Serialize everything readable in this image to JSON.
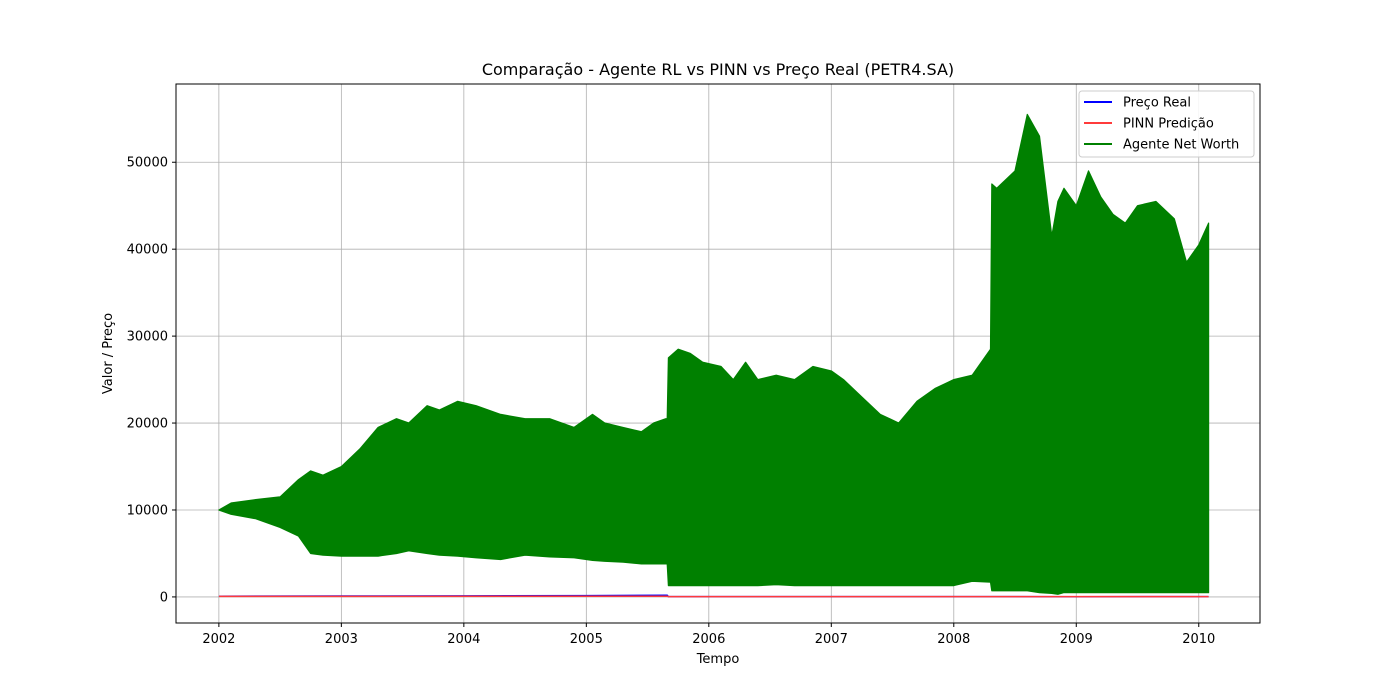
{
  "chart_data": {
    "type": "line",
    "title": "Comparação - Agente RL vs PINN vs Preço Real (PETR4.SA)",
    "xlabel": "Tempo",
    "ylabel": "Valor / Preço",
    "xlim": [
      2001.65,
      2010.5
    ],
    "ylim": [
      -3000,
      59000
    ],
    "x_ticks": [
      2002,
      2003,
      2004,
      2005,
      2006,
      2007,
      2008,
      2009,
      2010
    ],
    "y_ticks": [
      0,
      10000,
      20000,
      30000,
      40000,
      50000
    ],
    "grid": true,
    "legend_position": "top-right",
    "series": [
      {
        "name": "Preço Real",
        "color": "#0000ff",
        "style": "line",
        "x": [
          2002.0,
          2003.0,
          2004.0,
          2005.0,
          2005.66,
          2005.67,
          2007.0,
          2008.0,
          2009.0,
          2010.08
        ],
        "y": [
          80,
          100,
          120,
          150,
          200,
          40,
          40,
          40,
          30,
          40
        ]
      },
      {
        "name": "PINN Predição",
        "color": "#ff3b3b",
        "style": "line",
        "x": [
          2002.0,
          2005.66,
          2005.67,
          2010.08
        ],
        "y": [
          60,
          80,
          40,
          40
        ]
      },
      {
        "name": "Agente Net Worth",
        "color": "#008000",
        "style": "band",
        "x": [
          2002.0,
          2002.1,
          2002.3,
          2002.5,
          2002.65,
          2002.75,
          2002.85,
          2003.0,
          2003.15,
          2003.3,
          2003.45,
          2003.55,
          2003.7,
          2003.8,
          2003.95,
          2004.1,
          2004.3,
          2004.5,
          2004.7,
          2004.9,
          2005.05,
          2005.15,
          2005.3,
          2005.45,
          2005.55,
          2005.65,
          2005.66,
          2005.67,
          2005.75,
          2005.85,
          2005.95,
          2006.1,
          2006.2,
          2006.3,
          2006.4,
          2006.55,
          2006.7,
          2006.85,
          2007.0,
          2007.1,
          2007.25,
          2007.4,
          2007.55,
          2007.7,
          2007.85,
          2008.0,
          2008.15,
          2008.3,
          2008.31,
          2008.35,
          2008.5,
          2008.6,
          2008.7,
          2008.8,
          2008.85,
          2008.9,
          2009.0,
          2009.1,
          2009.2,
          2009.3,
          2009.4,
          2009.5,
          2009.65,
          2009.8,
          2009.9,
          2010.0,
          2010.08
        ],
        "high": [
          10000,
          10800,
          11200,
          11500,
          13500,
          14500,
          14000,
          15000,
          17000,
          19500,
          20500,
          20000,
          22000,
          21500,
          22500,
          22000,
          21000,
          20500,
          20500,
          19500,
          21000,
          20000,
          19500,
          19000,
          20000,
          20500,
          20500,
          27500,
          28500,
          28000,
          27000,
          26500,
          25000,
          27000,
          25000,
          25500,
          25000,
          26500,
          26000,
          25000,
          23000,
          21000,
          20000,
          22500,
          24000,
          25000,
          25500,
          28500,
          47500,
          47000,
          49000,
          55500,
          53000,
          41500,
          45500,
          47000,
          45000,
          49000,
          46000,
          44000,
          43000,
          45000,
          45500,
          43500,
          38500,
          40500,
          43000
        ],
        "low": [
          10000,
          9500,
          9000,
          8000,
          7000,
          5000,
          4800,
          4700,
          4700,
          4700,
          5000,
          5300,
          5000,
          4800,
          4700,
          4500,
          4300,
          4800,
          4600,
          4500,
          4200,
          4100,
          4000,
          3800,
          3800,
          3800,
          3800,
          1300,
          1300,
          1300,
          1300,
          1300,
          1300,
          1300,
          1300,
          1400,
          1300,
          1300,
          1300,
          1300,
          1300,
          1300,
          1300,
          1300,
          1300,
          1300,
          1800,
          1700,
          700,
          700,
          700,
          700,
          500,
          400,
          300,
          500,
          500,
          500,
          500,
          500,
          500,
          500,
          500,
          500,
          500,
          500,
          500
        ]
      }
    ]
  }
}
